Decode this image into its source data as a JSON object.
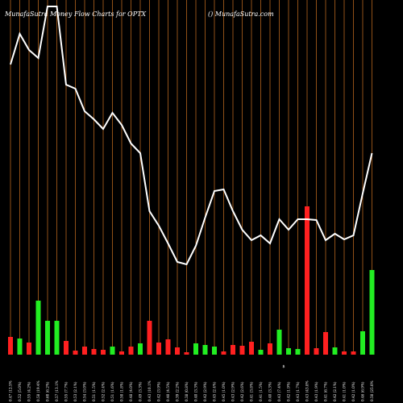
{
  "chart_data": {
    "type": "money-flow",
    "title": "MunafaSutra  Money Flow  Charts for OPTX",
    "subtitle": "() MunafaSutra.com",
    "annotation": "$",
    "background": "#000000",
    "gridline_color": "#b5651d",
    "ylim": [
      0,
      440
    ],
    "categories": [
      "0.47 (12.5%",
      "0.52 (5.0%)",
      "0.55 (4.2%)",
      "0.58 (19.4%",
      "0.60 (6.2%)",
      "0.57 (13.1%",
      "0.55 (7.7%)",
      "0.53 (2.1%)",
      "0.54 (3.0%)",
      "0.51 (1.5%)",
      "0.52 (2.4%)",
      "0.51 (1.6%)",
      "0.50 (1.8%)",
      "0.48 (4.0%)",
      "0.49 (3.3%)",
      "0.43 (10.1%",
      "0.42 (3.9%)",
      "0.40 (4.5%)",
      "0.39 (2.2%)",
      "0.38 (0.8%)",
      "0.40 (3.3%)",
      "0.42 (2.9%)",
      "0.45 (2.4%)",
      "0.45 (1.0%)",
      "0.43 (2.9%)",
      "0.42 (2.6%)",
      "0.41 (3.8%)",
      "0.41 (1.5%)",
      "0.40 (3.3%)",
      "0.43 (7.4%)",
      "0.42 (1.9%)",
      "0.43 (1.7%)",
      "0.43 (43.8%",
      "0.43 (1.9%)",
      "0.41 (6.7%)",
      "0.42 (2.1%)",
      "0.41 (1.0%)",
      "0.42 (1.0%)",
      "0.46 (6.9%)",
      "0.50 (25.0%"
    ],
    "series": [
      {
        "type": "line",
        "color": "#ffffff",
        "values": [
          360,
          398,
          378,
          368,
          432,
          432,
          335,
          330,
          302,
          292,
          280,
          300,
          285,
          262,
          250,
          178,
          160,
          138,
          115,
          112,
          135,
          170,
          203,
          205,
          178,
          155,
          142,
          148,
          138,
          168,
          155,
          168,
          168,
          167,
          142,
          150,
          143,
          148,
          200,
          250
        ]
      },
      {
        "type": "bar",
        "colors": [
          "#ff2020",
          "#22ee22",
          "#ff2020",
          "#22ee22",
          "#22ee22",
          "#22ee22",
          "#ff2020",
          "#ff2020",
          "#ff2020",
          "#ff2020",
          "#ff2020",
          "#22ee22",
          "#ff2020",
          "#ff2020",
          "#22ee22",
          "#ff2020",
          "#ff2020",
          "#ff2020",
          "#ff2020",
          "#ff2020",
          "#22ee22",
          "#22ee22",
          "#22ee22",
          "#ff2020",
          "#ff2020",
          "#ff2020",
          "#ff2020",
          "#22ee22",
          "#ff2020",
          "#22ee22",
          "#22ee22",
          "#22ee22",
          "#ff2020",
          "#ff2020",
          "#ff2020",
          "#22ee22",
          "#ff2020",
          "#ff2020",
          "#22ee22",
          "#22ee22"
        ],
        "values": [
          22,
          20,
          15,
          67,
          42,
          42,
          17,
          5,
          10,
          7,
          6,
          10,
          4,
          10,
          14,
          42,
          15,
          19,
          9,
          3,
          14,
          12,
          10,
          4,
          12,
          11,
          16,
          6,
          14,
          31,
          8,
          7,
          184,
          8,
          28,
          9,
          4,
          4,
          29,
          105
        ]
      }
    ]
  }
}
